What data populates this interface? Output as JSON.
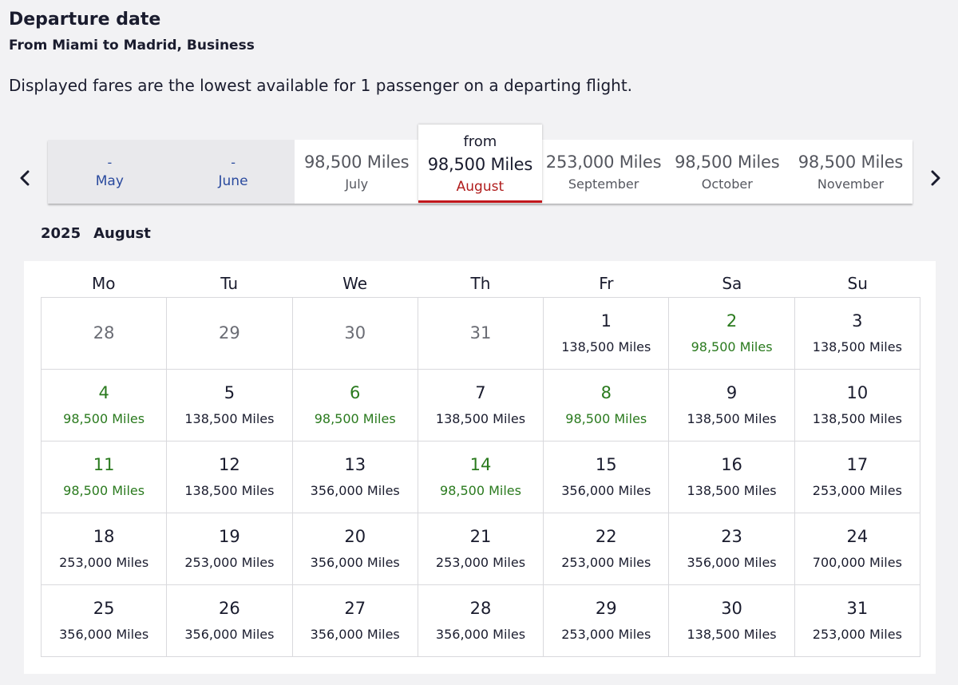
{
  "header": {
    "title": "Departure date",
    "subtitle": "From Miami to Madrid, Business",
    "note": "Displayed fares are the lowest available for 1 passenger on a departing flight."
  },
  "colors": {
    "low_fare": "#2a7a1e",
    "selected_accent": "#c2171c",
    "unavailable_link": "#2a4a9e"
  },
  "icons": {
    "prev": "chevron-left-icon",
    "next": "chevron-right-icon"
  },
  "months": [
    {
      "price": "-",
      "label": "May"
    },
    {
      "price": "-",
      "label": "June"
    },
    {
      "price": "98,500 Miles",
      "label": "July"
    },
    {
      "prefix": "from",
      "price": "98,500 Miles",
      "label": "August",
      "selected": true
    },
    {
      "price": "253,000 Miles",
      "label": "September"
    },
    {
      "price": "98,500 Miles",
      "label": "October"
    },
    {
      "price": "98,500 Miles",
      "label": "November"
    }
  ],
  "calendar": {
    "year": "2025",
    "month": "August",
    "weekdays": [
      "Mo",
      "Tu",
      "We",
      "Th",
      "Fr",
      "Sa",
      "Su"
    ],
    "cells": [
      {
        "day": "28",
        "fare": "",
        "outside": true
      },
      {
        "day": "29",
        "fare": "",
        "outside": true
      },
      {
        "day": "30",
        "fare": "",
        "outside": true
      },
      {
        "day": "31",
        "fare": "",
        "outside": true
      },
      {
        "day": "1",
        "fare": "138,500 Miles"
      },
      {
        "day": "2",
        "fare": "98,500 Miles",
        "low": true
      },
      {
        "day": "3",
        "fare": "138,500 Miles"
      },
      {
        "day": "4",
        "fare": "98,500 Miles",
        "low": true
      },
      {
        "day": "5",
        "fare": "138,500 Miles"
      },
      {
        "day": "6",
        "fare": "98,500 Miles",
        "low": true
      },
      {
        "day": "7",
        "fare": "138,500 Miles"
      },
      {
        "day": "8",
        "fare": "98,500 Miles",
        "low": true
      },
      {
        "day": "9",
        "fare": "138,500 Miles"
      },
      {
        "day": "10",
        "fare": "138,500 Miles"
      },
      {
        "day": "11",
        "fare": "98,500 Miles",
        "low": true
      },
      {
        "day": "12",
        "fare": "138,500 Miles"
      },
      {
        "day": "13",
        "fare": "356,000 Miles"
      },
      {
        "day": "14",
        "fare": "98,500 Miles",
        "low": true
      },
      {
        "day": "15",
        "fare": "356,000 Miles"
      },
      {
        "day": "16",
        "fare": "138,500 Miles"
      },
      {
        "day": "17",
        "fare": "253,000 Miles"
      },
      {
        "day": "18",
        "fare": "253,000 Miles"
      },
      {
        "day": "19",
        "fare": "253,000 Miles"
      },
      {
        "day": "20",
        "fare": "356,000 Miles"
      },
      {
        "day": "21",
        "fare": "253,000 Miles"
      },
      {
        "day": "22",
        "fare": "253,000 Miles"
      },
      {
        "day": "23",
        "fare": "356,000 Miles"
      },
      {
        "day": "24",
        "fare": "700,000 Miles"
      },
      {
        "day": "25",
        "fare": "356,000 Miles"
      },
      {
        "day": "26",
        "fare": "356,000 Miles"
      },
      {
        "day": "27",
        "fare": "356,000 Miles"
      },
      {
        "day": "28",
        "fare": "356,000 Miles"
      },
      {
        "day": "29",
        "fare": "253,000 Miles"
      },
      {
        "day": "30",
        "fare": "138,500 Miles"
      },
      {
        "day": "31",
        "fare": "253,000 Miles"
      }
    ]
  }
}
